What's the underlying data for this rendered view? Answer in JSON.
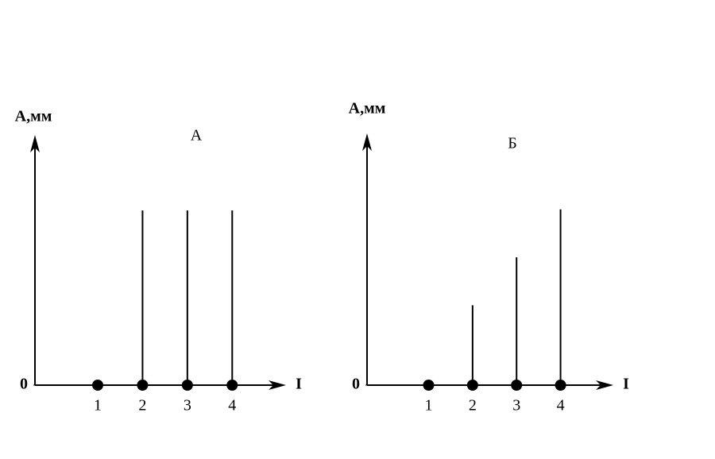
{
  "chart_data": [
    {
      "type": "stem",
      "title": "А",
      "y_label": "A,мм",
      "x_label": "I",
      "x": [
        1,
        2,
        3,
        4
      ],
      "values": [
        0,
        2.2,
        2.2,
        2.2
      ],
      "color": "#000000",
      "xlim": [
        -0.4,
        5.2
      ],
      "ylim": [
        0,
        3.15
      ],
      "yticks": [
        0
      ]
    },
    {
      "type": "stem",
      "title": "Б",
      "y_label": "A,мм",
      "x_label": "I",
      "x": [
        1,
        2,
        3,
        4
      ],
      "values": [
        0,
        1.0,
        1.6,
        2.2
      ],
      "color": "#000000",
      "xlim": [
        -0.4,
        5.2
      ],
      "ylim": [
        0,
        3.15
      ],
      "yticks": [
        0
      ]
    }
  ]
}
